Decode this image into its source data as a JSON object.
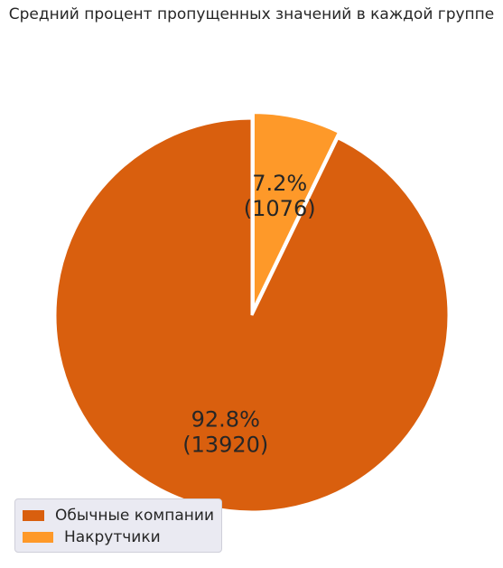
{
  "chart_data": {
    "type": "pie",
    "title": "Средний процент пропущенных значений в каждой группе",
    "categories": [
      "Обычные компании",
      "Накрутчики"
    ],
    "values": [
      13920,
      1076
    ],
    "percent_labels": [
      "92.8%",
      "7.2%"
    ],
    "count_labels": [
      "(13920)",
      "(1076)"
    ],
    "colors": [
      "#d95f0e",
      "#fe9929"
    ],
    "exploded": [
      false,
      true
    ],
    "legend_placement": "lower-left"
  }
}
